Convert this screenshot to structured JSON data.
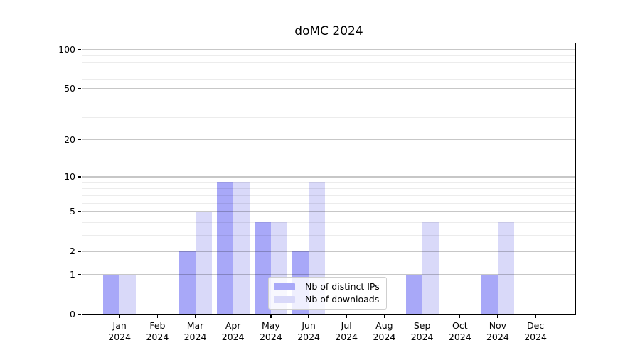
{
  "chart_data": {
    "type": "bar",
    "title": "doMC 2024",
    "categories": [
      "Jan",
      "Feb",
      "Mar",
      "Apr",
      "May",
      "Jun",
      "Jul",
      "Aug",
      "Sep",
      "Oct",
      "Nov",
      "Dec"
    ],
    "category_year": "2024",
    "series": [
      {
        "name": "Nb of distinct IPs",
        "color": "#a8a8f8",
        "values": [
          1,
          0,
          2,
          9,
          4,
          2,
          0,
          0,
          1,
          0,
          1,
          0
        ]
      },
      {
        "name": "Nb of downloads",
        "color": "#d9d9f9",
        "values": [
          1,
          0,
          5,
          9,
          4,
          9,
          0,
          0,
          4,
          0,
          4,
          0
        ]
      }
    ],
    "y_scale": "log10(1+x)",
    "y_major_ticks": [
      0,
      1,
      2,
      5,
      10,
      20,
      50,
      100
    ],
    "y_minor_gridlines": [
      3,
      4,
      6,
      7,
      8,
      9,
      30,
      40,
      60,
      70,
      80,
      90
    ],
    "ylim": [
      0,
      113
    ],
    "grid": "horizontal, drawn above bars",
    "legend_position": "lower center",
    "colors": {
      "major_grid": "#c8c8c8",
      "minor_grid": "#ececec",
      "spine": "#000000",
      "background": "#ffffff"
    }
  }
}
